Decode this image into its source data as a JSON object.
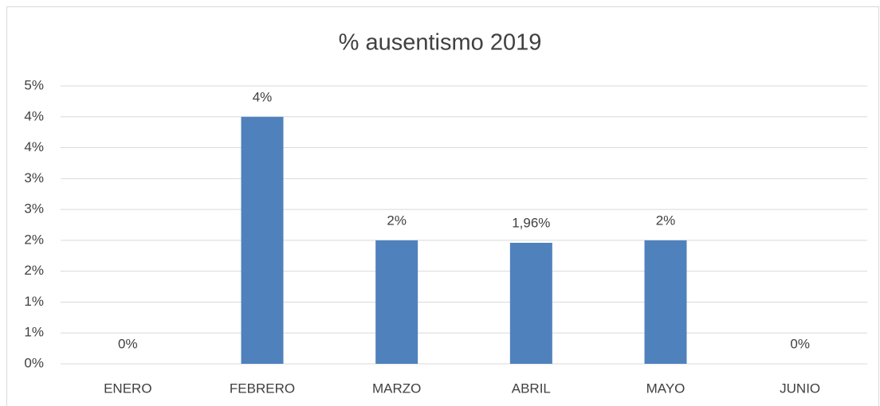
{
  "chart_data": {
    "type": "bar",
    "title": "% ausentismo 2019",
    "categories": [
      "ENERO",
      "FEBRERO",
      "MARZO",
      "ABRIL",
      "MAYO",
      "JUNIO"
    ],
    "values": [
      0,
      4,
      2,
      1.96,
      2,
      0
    ],
    "value_labels": [
      "0%",
      "4%",
      "2%",
      "1,96%",
      "2%",
      "0%"
    ],
    "color": "#4f81bd",
    "ylim": [
      0,
      4.5
    ],
    "yticks": [
      {
        "value": 0,
        "label": "0%"
      },
      {
        "value": 0.5,
        "label": "1%"
      },
      {
        "value": 1,
        "label": "1%"
      },
      {
        "value": 1.5,
        "label": "2%"
      },
      {
        "value": 2,
        "label": "2%"
      },
      {
        "value": 2.5,
        "label": "3%"
      },
      {
        "value": 3,
        "label": "3%"
      },
      {
        "value": 3.5,
        "label": "4%"
      },
      {
        "value": 4,
        "label": "4%"
      },
      {
        "value": 4.5,
        "label": "5%"
      }
    ],
    "grid": true
  }
}
